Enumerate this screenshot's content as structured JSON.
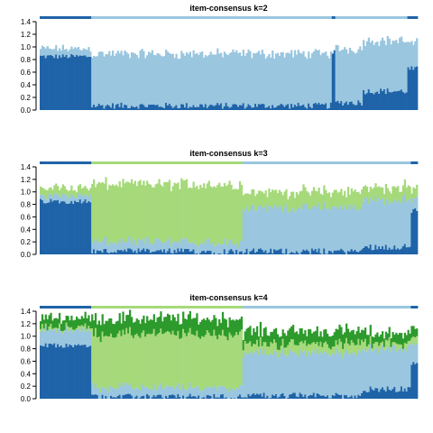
{
  "chart_data": [
    {
      "type": "bar",
      "title": "item-consensus k=2",
      "xlabel": "",
      "ylabel": "",
      "ylim": [
        0,
        1.4
      ],
      "yticks": [
        "0.0",
        "0.2",
        "0.4",
        "0.6",
        "0.8",
        "1.0",
        "1.2",
        "1.4"
      ],
      "stacked": true,
      "grid": false,
      "colors": [
        "#1f63a8",
        "#9ac6df"
      ],
      "segments": [
        {
          "n": 30,
          "cluster": 1,
          "values": [
            0.85,
            0.12
          ]
        },
        {
          "n": 140,
          "cluster": 2,
          "values": [
            0.07,
            0.82
          ]
        },
        {
          "n": 2,
          "cluster": 1,
          "values": [
            0.9,
            0.02
          ]
        },
        {
          "n": 16,
          "cluster": 2,
          "values": [
            0.12,
            0.85
          ]
        },
        {
          "n": 26,
          "cluster": 2,
          "values": [
            0.3,
            0.8
          ]
        },
        {
          "n": 6,
          "cluster": 1,
          "values": [
            0.65,
            0.4
          ]
        }
      ]
    },
    {
      "type": "bar",
      "title": "item-consensus k=3",
      "xlabel": "",
      "ylabel": "",
      "ylim": [
        0,
        1.4
      ],
      "yticks": [
        "0.0",
        "0.2",
        "0.4",
        "0.6",
        "0.8",
        "1.0",
        "1.2",
        "1.4"
      ],
      "stacked": true,
      "grid": false,
      "colors": [
        "#1f63a8",
        "#9ac6df",
        "#a6d97a"
      ],
      "segments": [
        {
          "n": 30,
          "cluster": 1,
          "values": [
            0.85,
            0.1,
            0.12
          ]
        },
        {
          "n": 88,
          "cluster": 3,
          "values": [
            0.05,
            0.15,
            0.92
          ]
        },
        {
          "n": 70,
          "cluster": 2,
          "values": [
            0.05,
            0.7,
            0.25
          ]
        },
        {
          "n": 28,
          "cluster": 2,
          "values": [
            0.12,
            0.75,
            0.2
          ]
        },
        {
          "n": 4,
          "cluster": 1,
          "values": [
            0.7,
            0.2,
            0.15
          ]
        }
      ]
    },
    {
      "type": "bar",
      "title": "item-consensus k=4",
      "xlabel": "",
      "ylabel": "",
      "ylim": [
        0,
        1.4
      ],
      "yticks": [
        "0.0",
        "0.2",
        "0.4",
        "0.6",
        "0.8",
        "1.0",
        "1.2",
        "1.4"
      ],
      "stacked": true,
      "grid": false,
      "colors": [
        "#1f63a8",
        "#9ac6df",
        "#a6d97a",
        "#2d9a2c"
      ],
      "segments": [
        {
          "n": 30,
          "cluster": 1,
          "values": [
            0.85,
            0.25,
            0.05,
            0.15
          ]
        },
        {
          "n": 88,
          "cluster": 3,
          "values": [
            0.03,
            0.15,
            0.85,
            0.25
          ]
        },
        {
          "n": 70,
          "cluster": 2,
          "values": [
            0.05,
            0.68,
            0.15,
            0.2
          ]
        },
        {
          "n": 28,
          "cluster": 2,
          "values": [
            0.15,
            0.65,
            0.1,
            0.15
          ]
        },
        {
          "n": 4,
          "cluster": 1,
          "values": [
            0.55,
            0.3,
            0.1,
            0.15
          ]
        }
      ]
    }
  ]
}
